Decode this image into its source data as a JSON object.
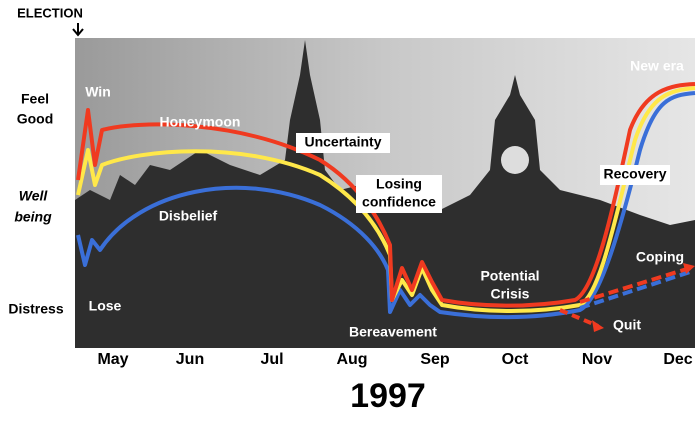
{
  "election": "ELECTION",
  "y_labels": {
    "feel_good": [
      "Feel",
      "Good"
    ],
    "well_being": [
      "Well",
      "being"
    ],
    "distress": "Distress"
  },
  "months": [
    "May",
    "Jun",
    "Jul",
    "Aug",
    "Sep",
    "Oct",
    "Nov",
    "Dec"
  ],
  "year": "1997",
  "annotations": {
    "win": "Win",
    "honeymoon": "Honeymoon",
    "uncertainty": "Uncertainty",
    "losing_confidence": [
      "Losing",
      "confidence"
    ],
    "disbelief": "Disbelief",
    "lose": "Lose",
    "bereavement": "Bereavement",
    "potential_crisis": [
      "Potential",
      "Crisis"
    ],
    "quit": "Quit",
    "coping": "Coping",
    "recovery": "Recovery",
    "new_era": "New era"
  }
}
